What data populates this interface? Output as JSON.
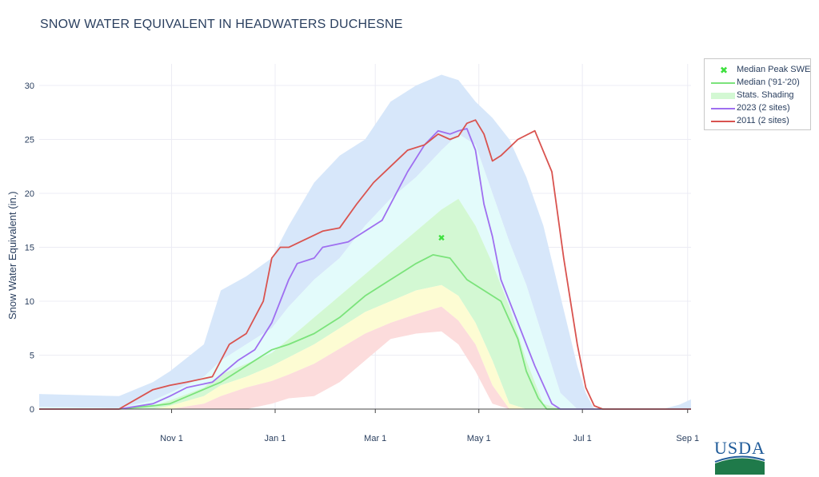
{
  "chart_data": {
    "type": "area",
    "title": "SNOW WATER EQUIVALENT IN HEADWATERS DUCHESNE",
    "ylabel": "Snow Water Equivalent (in.)",
    "xlabel": "",
    "ylim": [
      0,
      32
    ],
    "yticks": [
      0,
      5,
      10,
      15,
      20,
      25,
      30
    ],
    "xlim": [
      -47,
      337
    ],
    "xticks": [
      {
        "day": 31,
        "label": "Nov 1"
      },
      {
        "day": 92,
        "label": "Jan 1"
      },
      {
        "day": 151,
        "label": "Mar 1"
      },
      {
        "day": 212,
        "label": "May 1"
      },
      {
        "day": 273,
        "label": "Jul 1"
      },
      {
        "day": 335,
        "label": "Sep 1"
      }
    ],
    "grid": true,
    "legend_position": "top-right",
    "colors": {
      "max_band": "#d7e7fa",
      "p90_band": "#e3fbfb",
      "p70_band": "#d3f8d3",
      "p50_band": "#fdfcd3",
      "min_band": "#fcdcdc",
      "median": "#7be37b",
      "y2023": "#9f6ff0",
      "y2011": "#d9534f",
      "peak": "#3ee03e",
      "axis": "#444444",
      "grid": "#ececf4"
    },
    "shading": {
      "days": [
        -47,
        0,
        20,
        30,
        50,
        60,
        75,
        90,
        100,
        115,
        130,
        145,
        160,
        175,
        190,
        200,
        210,
        220,
        230,
        240,
        250,
        260,
        270,
        275,
        280,
        290,
        300,
        310,
        320,
        330,
        337
      ],
      "max": [
        1.4,
        1.2,
        2.5,
        3.5,
        6.0,
        11.0,
        12.3,
        14.0,
        17.0,
        21.0,
        23.5,
        25.0,
        28.5,
        30.0,
        31.0,
        30.5,
        28.5,
        27.0,
        25.0,
        21.5,
        17.0,
        10.5,
        4.0,
        1.5,
        0.0,
        0.0,
        0.0,
        0.0,
        0.0,
        0.4,
        0.9
      ],
      "p90": [
        0.2,
        0.1,
        0.8,
        1.5,
        3.0,
        4.5,
        6.0,
        7.5,
        9.5,
        12.0,
        14.0,
        17.0,
        19.5,
        21.5,
        24.0,
        25.5,
        24.5,
        20.0,
        15.5,
        11.5,
        6.5,
        1.5,
        0.0,
        0.0,
        0.0,
        0.0,
        0.0,
        0.0,
        0.0,
        0.0,
        0.0
      ],
      "p70": [
        0.0,
        0.0,
        0.3,
        0.8,
        2.0,
        3.2,
        4.2,
        5.2,
        6.5,
        8.5,
        10.5,
        12.5,
        14.5,
        16.5,
        18.5,
        19.5,
        17.0,
        13.5,
        9.5,
        4.5,
        0.5,
        0.0,
        0.0,
        0.0,
        0.0,
        0.0,
        0.0,
        0.0,
        0.0,
        0.0,
        0.0
      ],
      "p50": [
        0.0,
        0.0,
        0.0,
        0.3,
        1.2,
        2.2,
        3.0,
        4.0,
        4.8,
        6.0,
        7.5,
        9.0,
        10.0,
        11.0,
        11.5,
        10.5,
        8.0,
        4.5,
        0.5,
        0.0,
        0.0,
        0.0,
        0.0,
        0.0,
        0.0,
        0.0,
        0.0,
        0.0,
        0.0,
        0.0,
        0.0
      ],
      "p30": [
        0.0,
        0.0,
        0.0,
        0.0,
        0.5,
        1.2,
        2.0,
        2.6,
        3.2,
        4.2,
        5.6,
        7.0,
        8.0,
        8.8,
        9.5,
        8.2,
        6.0,
        2.2,
        0.0,
        0.0,
        0.0,
        0.0,
        0.0,
        0.0,
        0.0,
        0.0,
        0.0,
        0.0,
        0.0,
        0.0,
        0.0
      ],
      "p10": [
        0.0,
        0.0,
        0.0,
        0.0,
        0.0,
        0.0,
        0.0,
        0.5,
        1.0,
        1.2,
        2.5,
        4.5,
        6.5,
        7.0,
        7.2,
        6.0,
        3.5,
        0.5,
        0.0,
        0.0,
        0.0,
        0.0,
        0.0,
        0.0,
        0.0,
        0.0,
        0.0,
        0.0,
        0.0,
        0.0,
        0.0
      ]
    },
    "series": [
      {
        "name": "Median ('91-'20)",
        "style": "line",
        "x": [
          -47,
          0,
          20,
          30,
          45,
          60,
          70,
          80,
          90,
          100,
          115,
          130,
          145,
          160,
          175,
          185,
          195,
          200,
          205,
          215,
          225,
          235,
          240,
          247,
          252,
          260,
          337
        ],
        "y": [
          0,
          0,
          0.3,
          0.5,
          1.5,
          2.5,
          3.5,
          4.5,
          5.5,
          6.0,
          7.0,
          8.5,
          10.5,
          12.0,
          13.5,
          14.3,
          14.0,
          13.0,
          12.0,
          11.0,
          10.0,
          6.5,
          3.5,
          1.0,
          0.0,
          0.0,
          0.0
        ]
      },
      {
        "name": "2023 (2 sites)",
        "style": "line",
        "x": [
          -47,
          0,
          20,
          30,
          40,
          55,
          70,
          80,
          90,
          95,
          100,
          105,
          115,
          120,
          135,
          155,
          160,
          170,
          180,
          188,
          195,
          200,
          205,
          210,
          215,
          220,
          225,
          235,
          245,
          255,
          260,
          337
        ],
        "y": [
          0,
          0,
          0.5,
          1.2,
          2.0,
          2.5,
          4.5,
          5.5,
          8.0,
          10.0,
          12.0,
          13.5,
          14.0,
          15.0,
          15.5,
          17.5,
          19.0,
          22.0,
          24.5,
          25.8,
          25.5,
          25.8,
          26.0,
          24.0,
          19.0,
          16.0,
          12.0,
          8.0,
          4.0,
          0.5,
          0.0,
          0.0
        ]
      },
      {
        "name": "2011 (2 sites)",
        "style": "line",
        "x": [
          -47,
          0,
          20,
          30,
          40,
          55,
          65,
          75,
          85,
          90,
          95,
          100,
          120,
          130,
          140,
          150,
          160,
          170,
          180,
          188,
          195,
          200,
          205,
          210,
          215,
          220,
          225,
          235,
          245,
          255,
          262,
          270,
          275,
          280,
          285,
          337
        ],
        "y": [
          0,
          0,
          1.8,
          2.2,
          2.5,
          3.0,
          6.0,
          7.0,
          10.0,
          14.0,
          15.0,
          15.0,
          16.5,
          16.8,
          19.0,
          21.0,
          22.5,
          24.0,
          24.5,
          25.5,
          25.0,
          25.3,
          26.5,
          26.8,
          25.5,
          23.0,
          23.5,
          25.0,
          25.8,
          22.0,
          14.0,
          6.0,
          2.0,
          0.3,
          0.0,
          0.0
        ]
      },
      {
        "name": "Median Peak SWE",
        "style": "marker",
        "x": [
          190
        ],
        "y": [
          15.9
        ]
      }
    ]
  },
  "legend": {
    "items": [
      {
        "label": "Median Peak SWE",
        "kind": "marker",
        "color": "#3ee03e"
      },
      {
        "label": "Median ('91-'20)",
        "kind": "line",
        "color": "#7be37b"
      },
      {
        "label": "Stats. Shading",
        "kind": "band",
        "color": "#d3f8d3"
      },
      {
        "label": "2023 (2 sites)",
        "kind": "line",
        "color": "#9f6ff0"
      },
      {
        "label": "2011 (2 sites)",
        "kind": "line",
        "color": "#d9534f"
      }
    ]
  },
  "logo": {
    "text": "USDA"
  }
}
